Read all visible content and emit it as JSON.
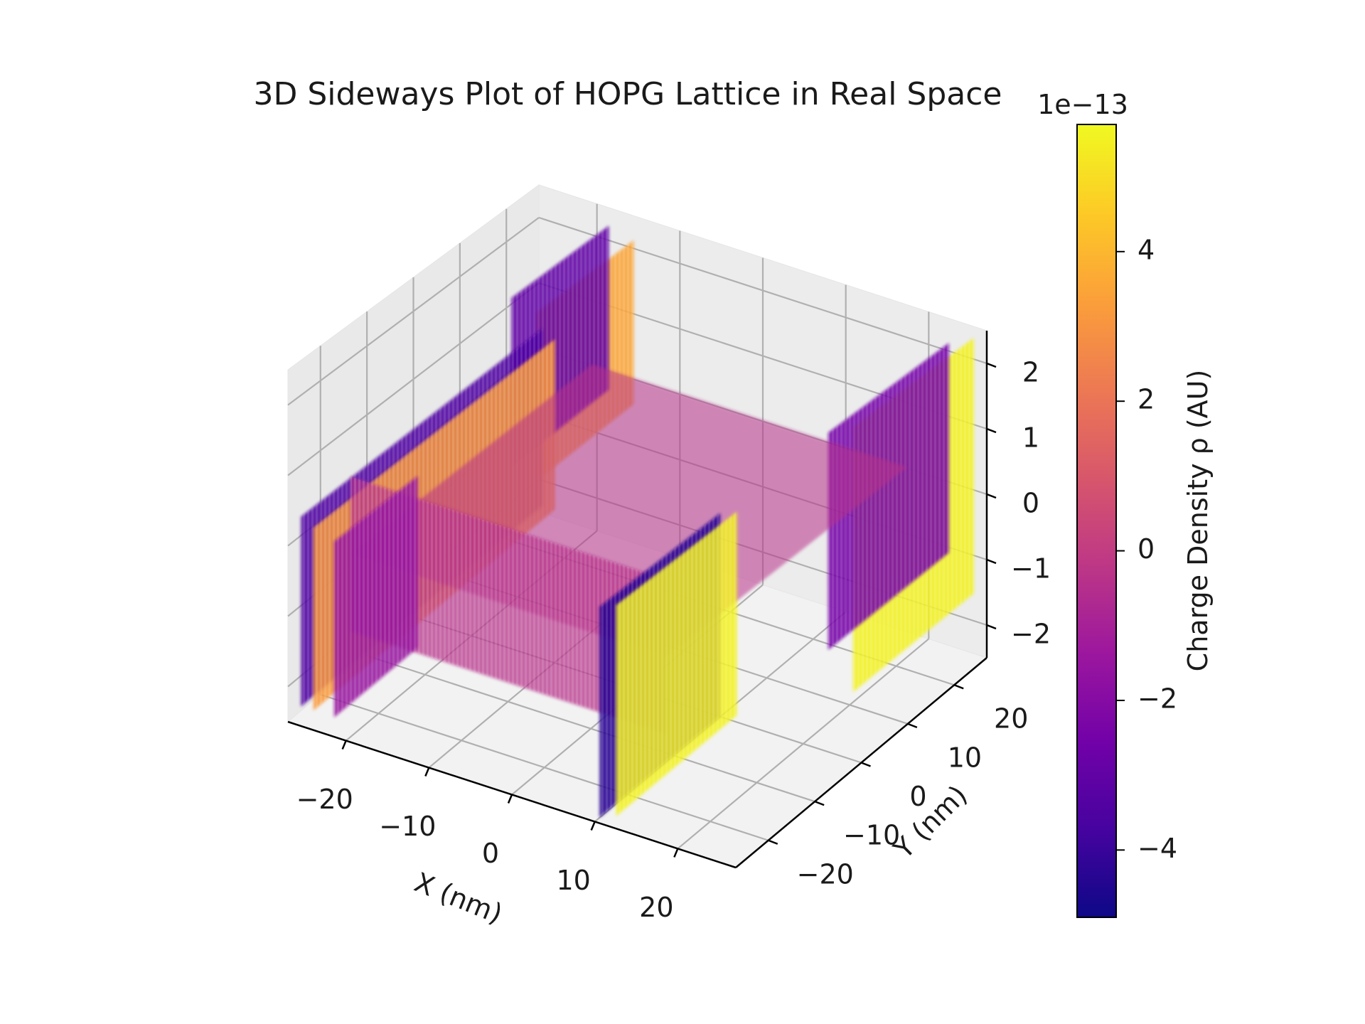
{
  "chart_data": {
    "type": "surface3d",
    "title": "3D Sideways Plot of HOPG Lattice in Real Space",
    "xlabel": "X (nm)",
    "ylabel": "Y (nm)",
    "zlabel": "",
    "x_ticks": [
      -20,
      -10,
      0,
      10,
      20
    ],
    "y_ticks": [
      -20,
      -10,
      0,
      10,
      20
    ],
    "z_ticks": [
      -2,
      -1,
      0,
      1,
      2
    ],
    "xlim": [
      -27,
      27
    ],
    "ylim": [
      -27,
      27
    ],
    "zlim": [
      -2.5,
      2.5
    ],
    "grid": true,
    "colormap": "plasma",
    "colorbar": {
      "label": "Charge Density ρ (AU)",
      "offset_text": "1e−13",
      "ticks": [
        -4,
        -2,
        0,
        2,
        4
      ],
      "range": [
        -4.9,
        5.7
      ]
    },
    "colors": {
      "cmap_stops": [
        "#0d0887",
        "#46039f",
        "#7201a8",
        "#9c179e",
        "#bd3786",
        "#d8576b",
        "#ed7953",
        "#fb9f3a",
        "#fdca26",
        "#f0f921"
      ],
      "pane_fill": "#f2f2f2",
      "grid_line": "#b0b0b0"
    },
    "bands": [
      {
        "name": "left-edge-wall",
        "x": -26,
        "y": [
          -26,
          26
        ],
        "z": [
          -2.3,
          0.4
        ],
        "rho": -3.5
      },
      {
        "name": "left-orange-wall",
        "x": -24.5,
        "y": [
          -26,
          26
        ],
        "z": [
          -2.3,
          0.3
        ],
        "rho": 3.2
      },
      {
        "name": "left-purple-front",
        "x": -22,
        "y": [
          -26,
          -8
        ],
        "z": [
          -2.3,
          0.2
        ],
        "rho": -1.5
      },
      {
        "name": "back-orange-ridge",
        "x": -15,
        "y": [
          5,
          26
        ],
        "z": [
          -0.3,
          2.2
        ],
        "rho": 3.5
      },
      {
        "name": "back-purple-tail",
        "x": -18,
        "y": [
          5,
          26
        ],
        "z": [
          -0.2,
          2.3
        ],
        "rho": -3.0
      },
      {
        "name": "middle-magenta-plateau",
        "x": [
          -20,
          18
        ],
        "y": [
          -26,
          26
        ],
        "z": [
          -1.0,
          1.2
        ],
        "rho": -0.4
      },
      {
        "name": "right-purple-sheet",
        "x": 10,
        "y": [
          -26,
          0
        ],
        "z": [
          -2.5,
          0.5
        ],
        "rho": -4.4
      },
      {
        "name": "right-yellow-wall",
        "x": 12,
        "y": [
          -26,
          0
        ],
        "z": [
          -2.4,
          0.6
        ],
        "rho": 5.5
      },
      {
        "name": "back-yellow-wall",
        "x": 26,
        "y": [
          0,
          26
        ],
        "z": [
          -1.5,
          2.4
        ],
        "rho": 5.5
      },
      {
        "name": "back-right-purple-fringe",
        "x": 23,
        "y": [
          0,
          26
        ],
        "z": [
          -1.0,
          2.2
        ],
        "rho": -2.5
      }
    ]
  }
}
